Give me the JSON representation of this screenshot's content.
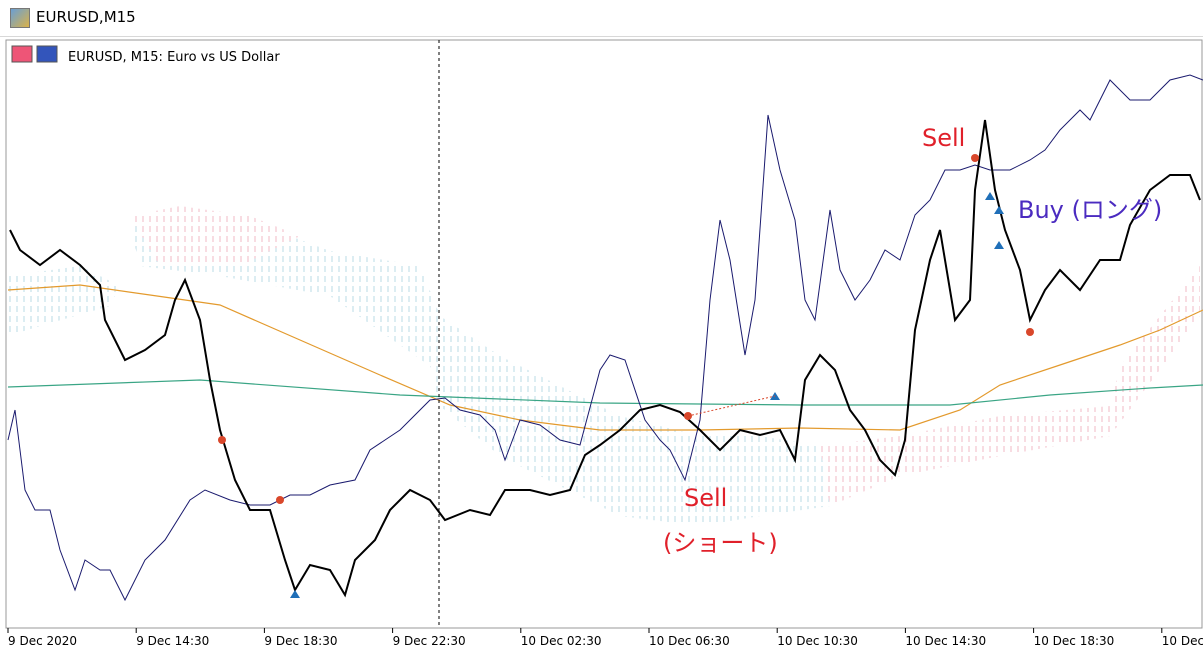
{
  "window": {
    "title": "EURUSD,M15"
  },
  "chart": {
    "header": "EURUSD, M15:  Euro vs US Dollar",
    "x_axis_labels": [
      "9 Dec 2020",
      "9 Dec 14:30",
      "9 Dec 18:30",
      "9 Dec 22:30",
      "10 Dec 02:30",
      "10 Dec 06:30",
      "10 Dec 10:30",
      "10 Dec 14:30",
      "10 Dec 18:30",
      "10 Dec"
    ],
    "annotations": [
      "Sell",
      "Buy (ロング)",
      "Sell",
      "(ショート)"
    ]
  }
}
